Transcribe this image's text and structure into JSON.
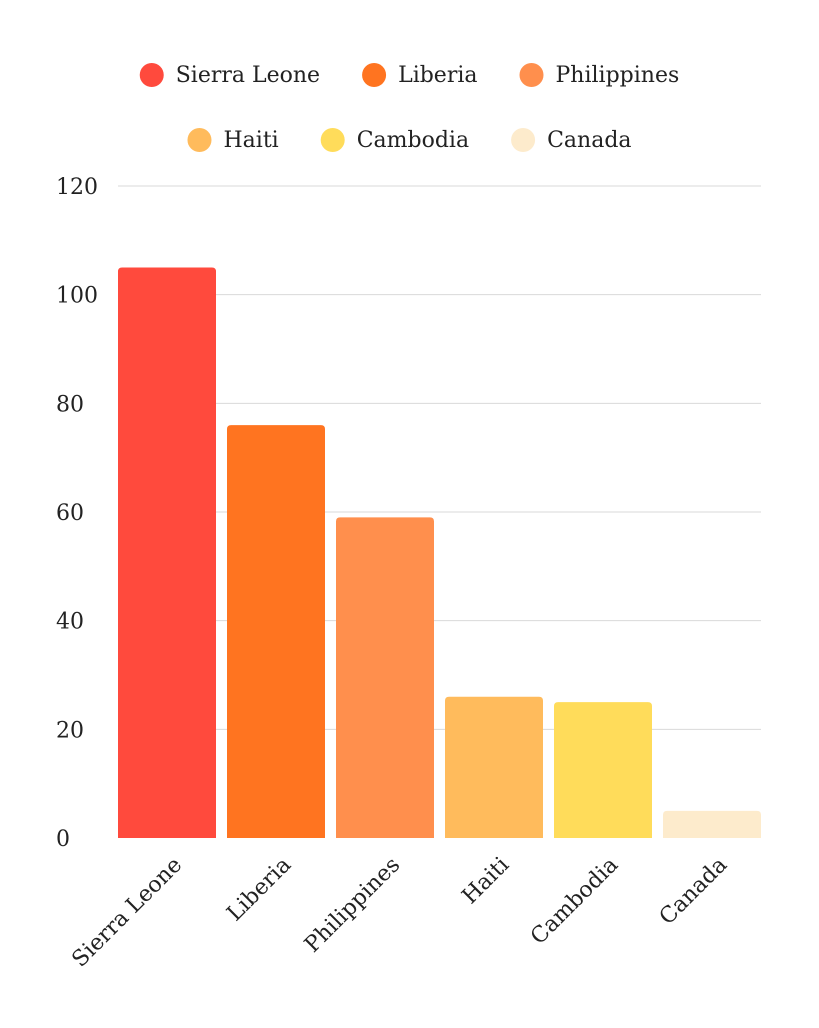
{
  "chart_data": {
    "type": "bar",
    "categories": [
      "Sierra Leone",
      "Liberia",
      "Philippines",
      "Haiti",
      "Cambodia",
      "Canada"
    ],
    "values": [
      105,
      76,
      59,
      26,
      25,
      5
    ],
    "colors": [
      "#ff4a3d",
      "#ff7420",
      "#ff8f4d",
      "#ffbb5c",
      "#ffdc5a",
      "#fdebcc"
    ],
    "legend": {
      "placement": "top",
      "entries": [
        "Sierra Leone",
        "Liberia",
        "Philippines",
        "Haiti",
        "Cambodia",
        "Canada"
      ]
    },
    "title": "",
    "xlabel": "",
    "ylabel": "",
    "ylim": [
      0,
      120
    ],
    "yticks": [
      0,
      20,
      40,
      60,
      80,
      100,
      120
    ],
    "grid": true
  }
}
